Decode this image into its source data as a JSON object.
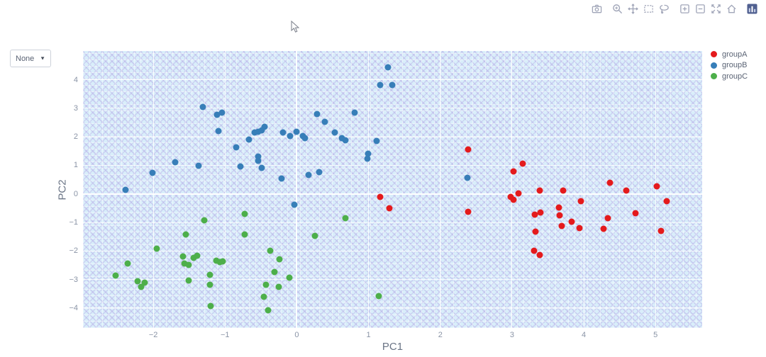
{
  "modebar": {
    "icons": [
      "camera",
      "zoom",
      "pan",
      "box-select",
      "lasso-select",
      "zoom-in",
      "zoom-out",
      "autoscale",
      "home",
      "plotly-logo"
    ],
    "icon_color": "#a0a5b8",
    "logo_color": "#506090"
  },
  "controls": {
    "color_dropdown": {
      "value": "None",
      "caret": "▼"
    }
  },
  "legend": {
    "items": [
      {
        "label": "groupA",
        "color": "#e41a1c"
      },
      {
        "label": "groupB",
        "color": "#377eb8"
      },
      {
        "label": "groupC",
        "color": "#4daf4a"
      }
    ]
  },
  "chart_data": {
    "type": "scatter",
    "title": "",
    "xlabel": "PC1",
    "ylabel": "PC2",
    "x_range": [
      -2.98,
      5.65
    ],
    "y_range": [
      -4.7,
      5.01
    ],
    "xticks": [
      -2,
      -1,
      0,
      1,
      2,
      3,
      4,
      5
    ],
    "yticks": [
      -4,
      -3,
      -2,
      -1,
      0,
      1,
      2,
      3,
      4
    ],
    "grid": true,
    "plot_bg": "#d9eefa",
    "grid_color": "#ffffff",
    "legend_position": "top-right-outside",
    "series": [
      {
        "name": "groupA",
        "color": "#e41a1c",
        "points": [
          [
            1.16,
            -0.1
          ],
          [
            1.29,
            -0.51
          ],
          [
            2.39,
            1.56
          ],
          [
            3.15,
            1.06
          ],
          [
            3.02,
            0.78
          ],
          [
            4.36,
            0.4
          ],
          [
            5.02,
            0.27
          ],
          [
            4.59,
            0.11
          ],
          [
            3.39,
            0.11
          ],
          [
            3.71,
            0.13
          ],
          [
            3.09,
            0.02
          ],
          [
            2.98,
            -0.1
          ],
          [
            3.02,
            -0.21
          ],
          [
            3.96,
            -0.26
          ],
          [
            5.16,
            -0.25
          ],
          [
            2.39,
            -0.62
          ],
          [
            3.65,
            -0.48
          ],
          [
            3.32,
            -0.73
          ],
          [
            3.4,
            -0.66
          ],
          [
            3.66,
            -0.75
          ],
          [
            4.72,
            -0.67
          ],
          [
            3.83,
            -0.97
          ],
          [
            3.69,
            -1.12
          ],
          [
            3.94,
            -1.2
          ],
          [
            4.34,
            -0.84
          ],
          [
            4.28,
            -1.22
          ],
          [
            5.08,
            -1.29
          ],
          [
            3.33,
            -1.33
          ],
          [
            3.31,
            -2.0
          ],
          [
            3.39,
            -2.13
          ]
        ]
      },
      {
        "name": "groupB",
        "color": "#377eb8",
        "points": [
          [
            1.27,
            4.43
          ],
          [
            1.16,
            3.82
          ],
          [
            1.33,
            3.82
          ],
          [
            -1.31,
            3.04
          ],
          [
            -1.11,
            2.77
          ],
          [
            -1.04,
            2.85
          ],
          [
            -1.09,
            2.2
          ],
          [
            -0.45,
            2.35
          ],
          [
            -0.59,
            2.15
          ],
          [
            -0.54,
            2.19
          ],
          [
            -0.49,
            2.24
          ],
          [
            -0.67,
            1.91
          ],
          [
            -0.19,
            2.16
          ],
          [
            -0.09,
            2.02
          ],
          [
            0.0,
            2.19
          ],
          [
            0.08,
            2.03
          ],
          [
            0.11,
            1.95
          ],
          [
            0.28,
            2.79
          ],
          [
            0.39,
            2.52
          ],
          [
            0.53,
            2.16
          ],
          [
            0.63,
            1.96
          ],
          [
            0.68,
            1.89
          ],
          [
            0.81,
            2.86
          ],
          [
            1.11,
            1.86
          ],
          [
            0.99,
            1.4
          ],
          [
            0.98,
            1.24
          ],
          [
            -0.84,
            1.63
          ],
          [
            -0.79,
            0.97
          ],
          [
            -0.54,
            1.3
          ],
          [
            -0.54,
            1.16
          ],
          [
            -0.49,
            0.92
          ],
          [
            -1.69,
            1.1
          ],
          [
            -1.37,
            0.99
          ],
          [
            -2.01,
            0.73
          ],
          [
            -0.21,
            0.55
          ],
          [
            0.16,
            0.67
          ],
          [
            0.31,
            0.77
          ],
          [
            -2.39,
            0.14
          ],
          [
            -0.03,
            -0.37
          ],
          [
            2.38,
            0.57
          ]
        ]
      },
      {
        "name": "groupC",
        "color": "#4daf4a",
        "points": [
          [
            -0.73,
            -0.7
          ],
          [
            -1.29,
            -0.92
          ],
          [
            -1.55,
            -1.42
          ],
          [
            -0.73,
            -1.42
          ],
          [
            0.68,
            -0.84
          ],
          [
            0.25,
            -1.48
          ],
          [
            -1.95,
            -1.91
          ],
          [
            -0.37,
            -2.0
          ],
          [
            -0.24,
            -2.29
          ],
          [
            -1.59,
            -2.2
          ],
          [
            -1.44,
            -2.23
          ],
          [
            -1.39,
            -2.17
          ],
          [
            -2.36,
            -2.43
          ],
          [
            -1.57,
            -2.45
          ],
          [
            -1.51,
            -2.49
          ],
          [
            -1.12,
            -2.33
          ],
          [
            -1.07,
            -2.4
          ],
          [
            -1.03,
            -2.37
          ],
          [
            -0.31,
            -2.73
          ],
          [
            -2.53,
            -2.86
          ],
          [
            -1.21,
            -2.83
          ],
          [
            -2.22,
            -3.07
          ],
          [
            -2.12,
            -3.1
          ],
          [
            -2.17,
            -3.25
          ],
          [
            -1.51,
            -3.03
          ],
          [
            -1.21,
            -3.19
          ],
          [
            -0.43,
            -3.19
          ],
          [
            -0.25,
            -3.25
          ],
          [
            -0.46,
            -3.6
          ],
          [
            -0.1,
            -2.94
          ],
          [
            -1.2,
            -3.93
          ],
          [
            -0.4,
            -4.09
          ],
          [
            1.14,
            -3.58
          ]
        ]
      }
    ]
  }
}
